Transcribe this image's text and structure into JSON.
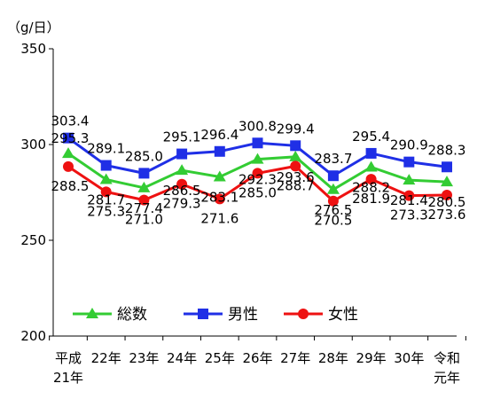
{
  "chart_data": {
    "type": "line",
    "unit_label": "（g/日）",
    "categories": [
      [
        "平成",
        "21年"
      ],
      [
        "22年"
      ],
      [
        "23年"
      ],
      [
        "24年"
      ],
      [
        "25年"
      ],
      [
        "26年"
      ],
      [
        "27年"
      ],
      [
        "28年"
      ],
      [
        "29年"
      ],
      [
        "30年"
      ],
      [
        "令和",
        "元年"
      ]
    ],
    "series": [
      {
        "name": "総数",
        "color": "#33cc33",
        "marker": "triangle",
        "values": [
          295.3,
          281.7,
          277.4,
          286.5,
          283.1,
          292.3,
          293.6,
          276.5,
          288.2,
          281.4,
          280.5
        ]
      },
      {
        "name": "男性",
        "color": "#1f2fe6",
        "marker": "square",
        "values": [
          303.4,
          289.1,
          285.0,
          295.1,
          296.4,
          300.8,
          299.4,
          283.7,
          295.4,
          290.9,
          288.3
        ]
      },
      {
        "name": "女性",
        "color": "#ee1111",
        "marker": "circle",
        "values": [
          288.5,
          275.3,
          271.0,
          279.3,
          271.6,
          285.0,
          288.7,
          270.5,
          281.9,
          273.3,
          273.6
        ]
      }
    ],
    "ylim": [
      200,
      350
    ],
    "yticks": [
      200,
      250,
      300,
      350
    ],
    "xlabel": "",
    "ylabel": "",
    "grid": false,
    "legend_position": "inside-bottom-left"
  }
}
